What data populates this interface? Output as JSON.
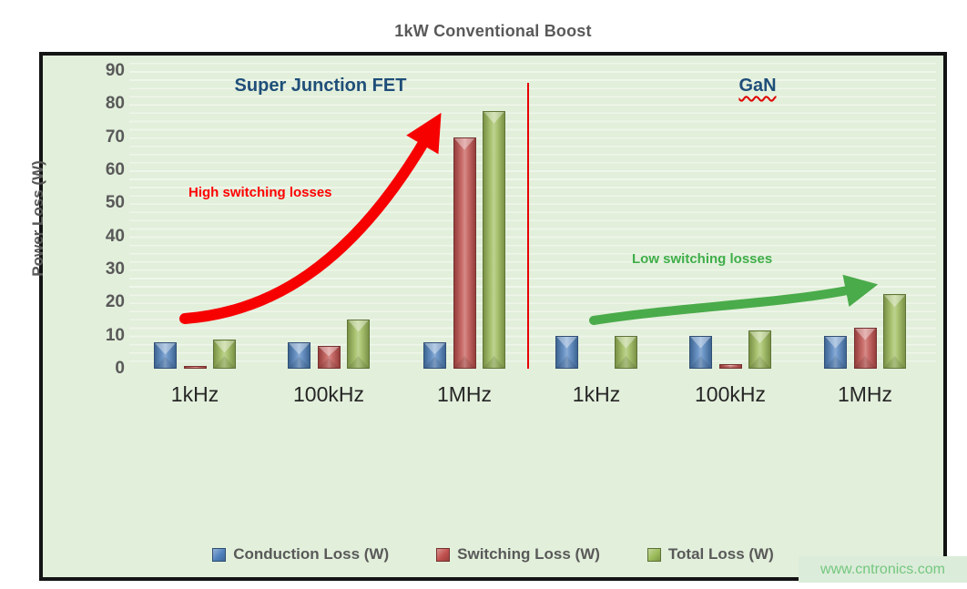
{
  "page": {
    "watermark": "www.cntronics.com"
  },
  "chart_data": {
    "type": "bar",
    "title": "1kW Conventional Boost",
    "xlabel": "",
    "ylabel": "Power Loss (W)",
    "ylim": [
      0,
      90
    ],
    "ytick_step": 10,
    "yticks": [
      0,
      10,
      20,
      30,
      40,
      50,
      60,
      70,
      80,
      90
    ],
    "grid": true,
    "legend_position": "bottom",
    "categories": [
      "1kHz",
      "100kHz",
      "1MHz",
      "1kHz",
      "100kHz",
      "1MHz"
    ],
    "sections": [
      {
        "label": "Super Junction FET",
        "color": "#1f4e79",
        "categories_span": [
          0,
          2
        ]
      },
      {
        "label": "GaN",
        "color": "#1f4e79",
        "categories_span": [
          3,
          5
        ]
      }
    ],
    "series": [
      {
        "name": "Conduction Loss (W)",
        "color": "#4f81bd",
        "values": [
          8,
          8,
          8,
          10,
          10,
          10
        ]
      },
      {
        "name": "Switching Loss (W)",
        "color": "#c0504d",
        "values": [
          0.7,
          7,
          70,
          0,
          1.5,
          12.5
        ]
      },
      {
        "name": "Total Loss (W)",
        "color": "#9bbb59",
        "values": [
          8.7,
          15,
          78,
          10,
          11.5,
          22.5
        ]
      }
    ],
    "annotations": [
      {
        "text": "High switching losses",
        "color": "#fe0000",
        "section": "Super Junction FET"
      },
      {
        "text": "Low switching losses",
        "color": "#3fae49",
        "section": "GaN"
      }
    ],
    "arrow_colors": {
      "high": "#f70000",
      "low": "#4aab4a"
    }
  }
}
